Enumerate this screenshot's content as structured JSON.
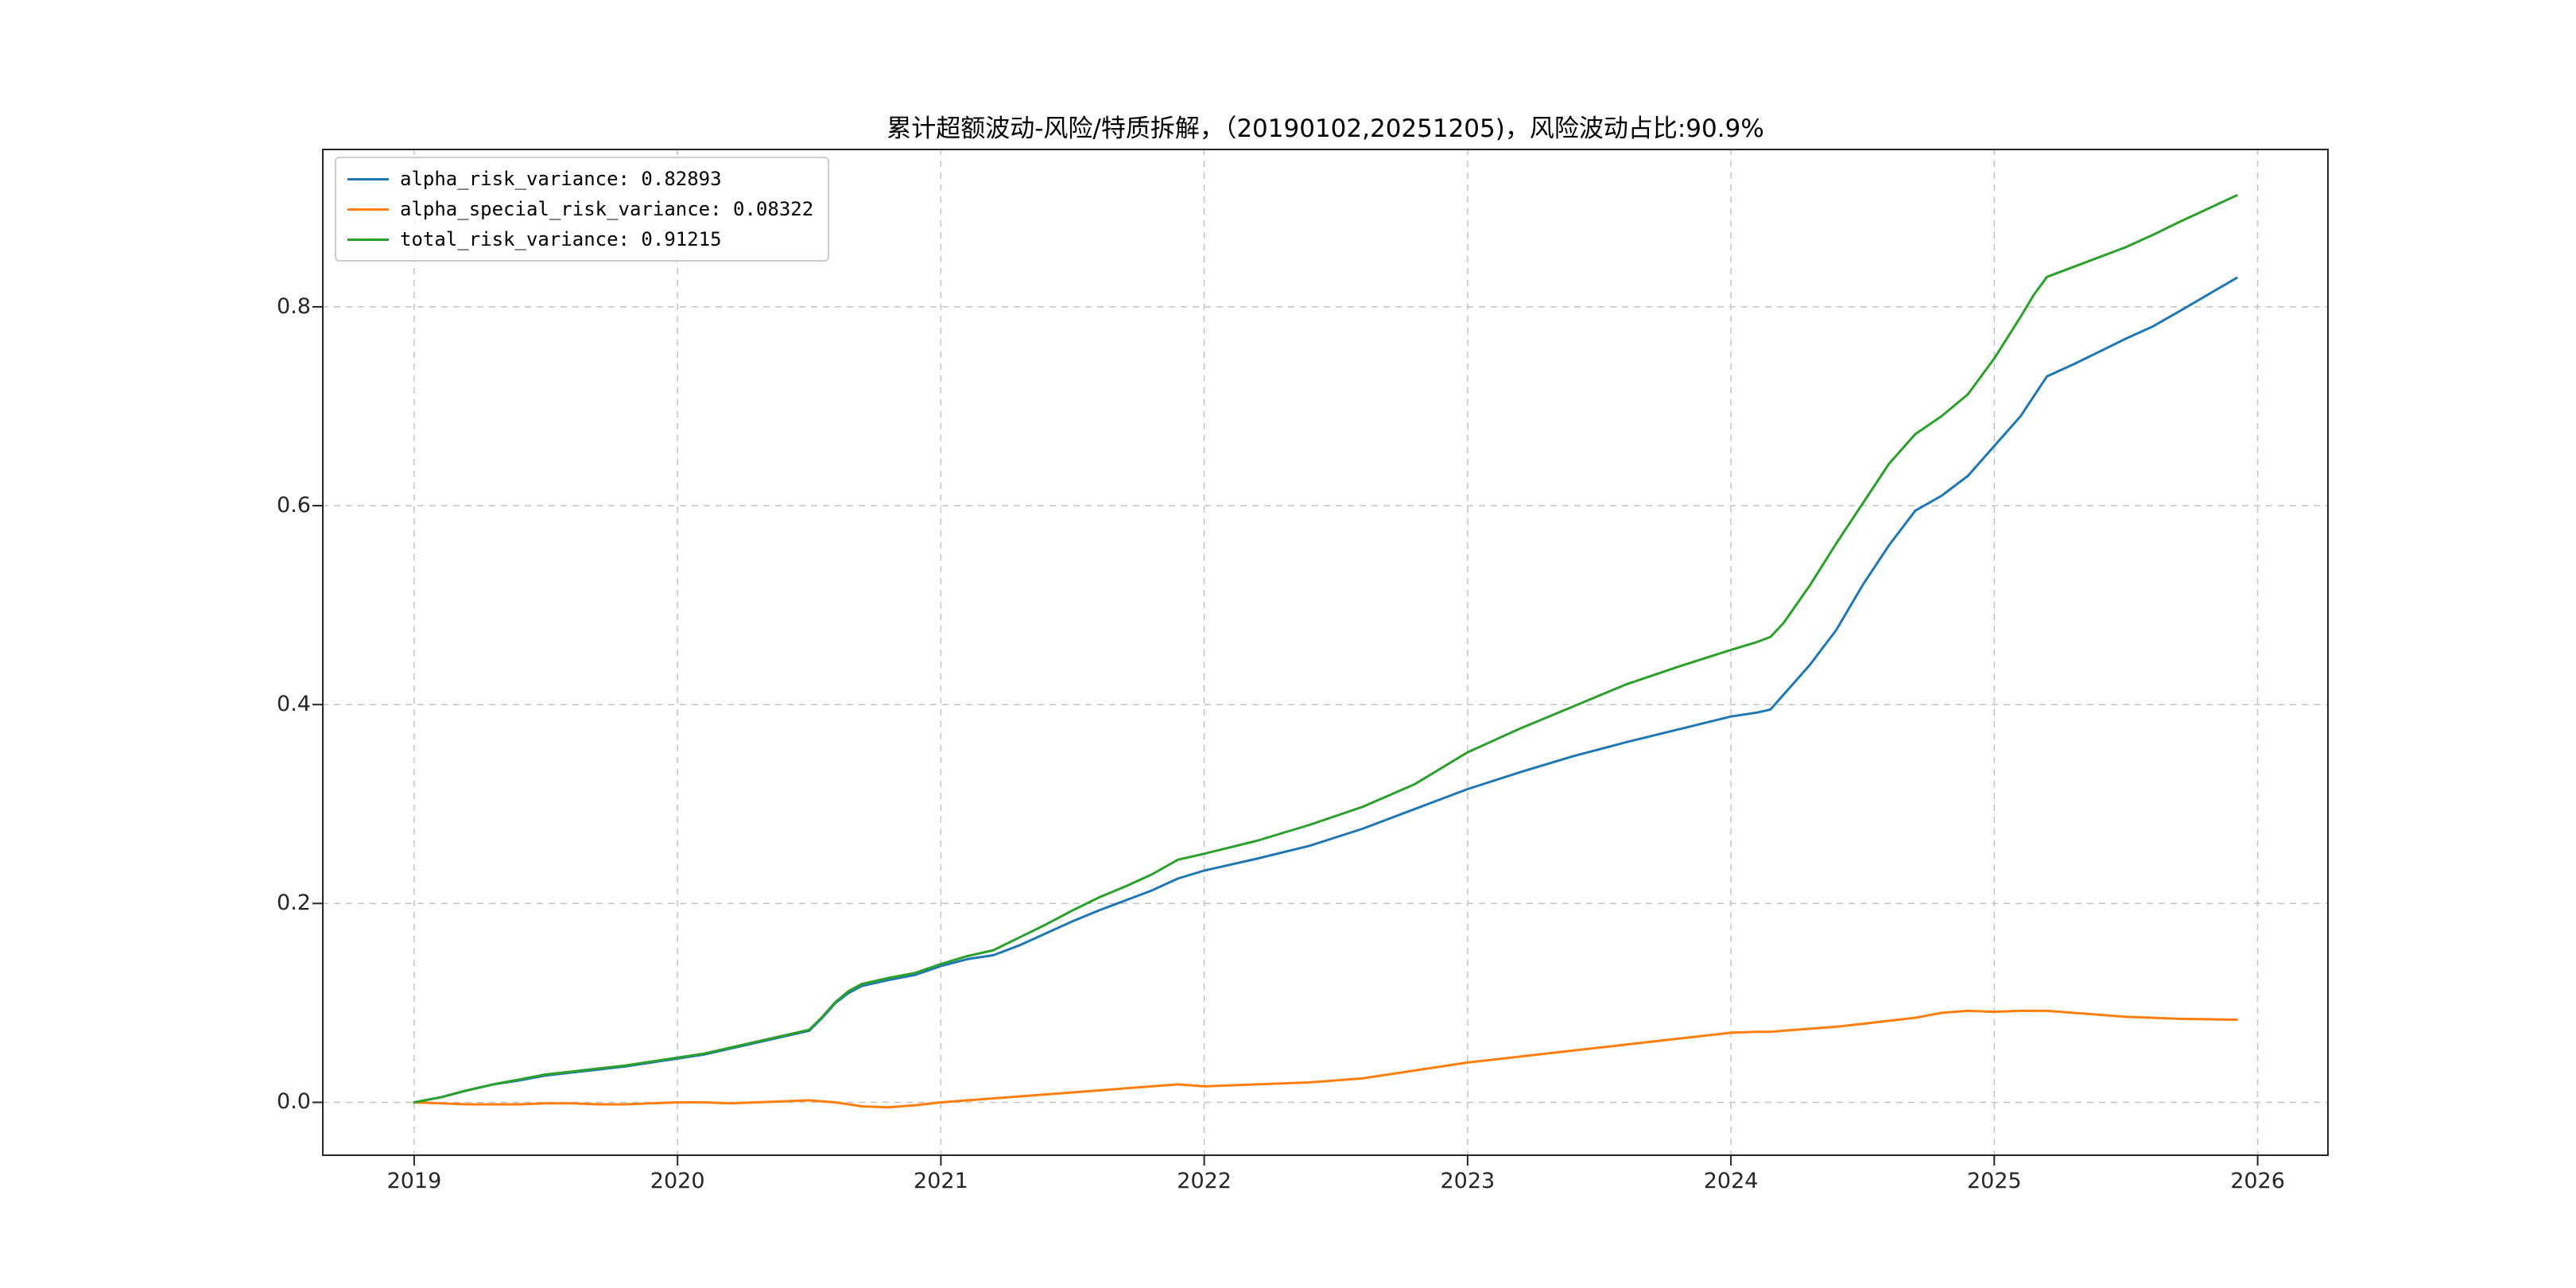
{
  "figure": {
    "background": "#ffffff"
  },
  "chart_data": {
    "type": "line",
    "title": "累计超额波动-风险/特质拆解，（20190102,20251205)，风险波动占比:90.9%",
    "xlabel": "",
    "ylabel": "",
    "xlim": [
      2018.65,
      2026.27
    ],
    "ylim": [
      -0.054,
      0.959
    ],
    "xticks": [
      2019,
      2020,
      2021,
      2022,
      2023,
      2024,
      2025,
      2026
    ],
    "yticks": [
      0.0,
      0.2,
      0.4,
      0.6,
      0.8
    ],
    "grid": "dashed",
    "legend_position": "upper-left",
    "x": [
      2019.0,
      2019.1,
      2019.2,
      2019.3,
      2019.4,
      2019.5,
      2019.6,
      2019.7,
      2019.8,
      2019.9,
      2020.0,
      2020.1,
      2020.2,
      2020.3,
      2020.4,
      2020.5,
      2020.55,
      2020.6,
      2020.65,
      2020.7,
      2020.8,
      2020.9,
      2021.0,
      2021.1,
      2021.2,
      2021.3,
      2021.4,
      2021.5,
      2021.6,
      2021.7,
      2021.8,
      2021.9,
      2022.0,
      2022.2,
      2022.4,
      2022.6,
      2022.8,
      2023.0,
      2023.2,
      2023.4,
      2023.6,
      2023.8,
      2024.0,
      2024.1,
      2024.15,
      2024.2,
      2024.3,
      2024.4,
      2024.5,
      2024.6,
      2024.7,
      2024.8,
      2024.9,
      2025.0,
      2025.1,
      2025.15,
      2025.2,
      2025.3,
      2025.4,
      2025.5,
      2025.6,
      2025.7,
      2025.92
    ],
    "series": [
      {
        "name": "alpha_risk_variance",
        "legend_label": "alpha_risk_variance: 0.82893",
        "final_value": 0.82893,
        "color": "#1f77b4",
        "values": [
          0.0,
          0.005,
          0.012,
          0.018,
          0.022,
          0.027,
          0.03,
          0.033,
          0.036,
          0.04,
          0.044,
          0.048,
          0.054,
          0.06,
          0.066,
          0.072,
          0.085,
          0.1,
          0.11,
          0.117,
          0.123,
          0.128,
          0.137,
          0.144,
          0.148,
          0.158,
          0.17,
          0.182,
          0.193,
          0.203,
          0.213,
          0.225,
          0.233,
          0.245,
          0.258,
          0.275,
          0.295,
          0.315,
          0.332,
          0.348,
          0.362,
          0.375,
          0.388,
          0.392,
          0.395,
          0.41,
          0.44,
          0.475,
          0.52,
          0.56,
          0.595,
          0.61,
          0.63,
          0.66,
          0.69,
          0.71,
          0.73,
          0.742,
          0.755,
          0.768,
          0.78,
          0.795,
          0.829
        ]
      },
      {
        "name": "alpha_special_risk_variance",
        "legend_label": "alpha_special_risk_variance: 0.08322",
        "final_value": 0.08322,
        "color": "#ff7f0e",
        "values": [
          0.0,
          -0.001,
          -0.002,
          -0.002,
          -0.002,
          -0.001,
          -0.001,
          -0.002,
          -0.002,
          -0.001,
          0.0,
          0.0,
          -0.001,
          0.0,
          0.001,
          0.002,
          0.001,
          0.0,
          -0.002,
          -0.004,
          -0.005,
          -0.003,
          0.0,
          0.002,
          0.004,
          0.006,
          0.008,
          0.01,
          0.012,
          0.014,
          0.016,
          0.018,
          0.016,
          0.018,
          0.02,
          0.024,
          0.032,
          0.04,
          0.046,
          0.052,
          0.058,
          0.064,
          0.07,
          0.071,
          0.071,
          0.072,
          0.074,
          0.076,
          0.079,
          0.082,
          0.085,
          0.09,
          0.092,
          0.091,
          0.092,
          0.092,
          0.092,
          0.09,
          0.088,
          0.086,
          0.085,
          0.084,
          0.083
        ]
      },
      {
        "name": "total_risk_variance",
        "legend_label": "total_risk_variance: 0.91215",
        "final_value": 0.91215,
        "color": "#2ca02c",
        "values": [
          0.0,
          0.005,
          0.012,
          0.018,
          0.023,
          0.028,
          0.031,
          0.034,
          0.037,
          0.041,
          0.045,
          0.049,
          0.055,
          0.061,
          0.067,
          0.073,
          0.086,
          0.101,
          0.112,
          0.119,
          0.125,
          0.13,
          0.139,
          0.147,
          0.153,
          0.166,
          0.179,
          0.193,
          0.206,
          0.217,
          0.229,
          0.244,
          0.25,
          0.263,
          0.279,
          0.297,
          0.32,
          0.352,
          0.376,
          0.398,
          0.42,
          0.438,
          0.455,
          0.463,
          0.468,
          0.482,
          0.52,
          0.562,
          0.602,
          0.642,
          0.672,
          0.69,
          0.712,
          0.748,
          0.79,
          0.812,
          0.83,
          0.84,
          0.85,
          0.86,
          0.872,
          0.885,
          0.912
        ]
      }
    ]
  }
}
